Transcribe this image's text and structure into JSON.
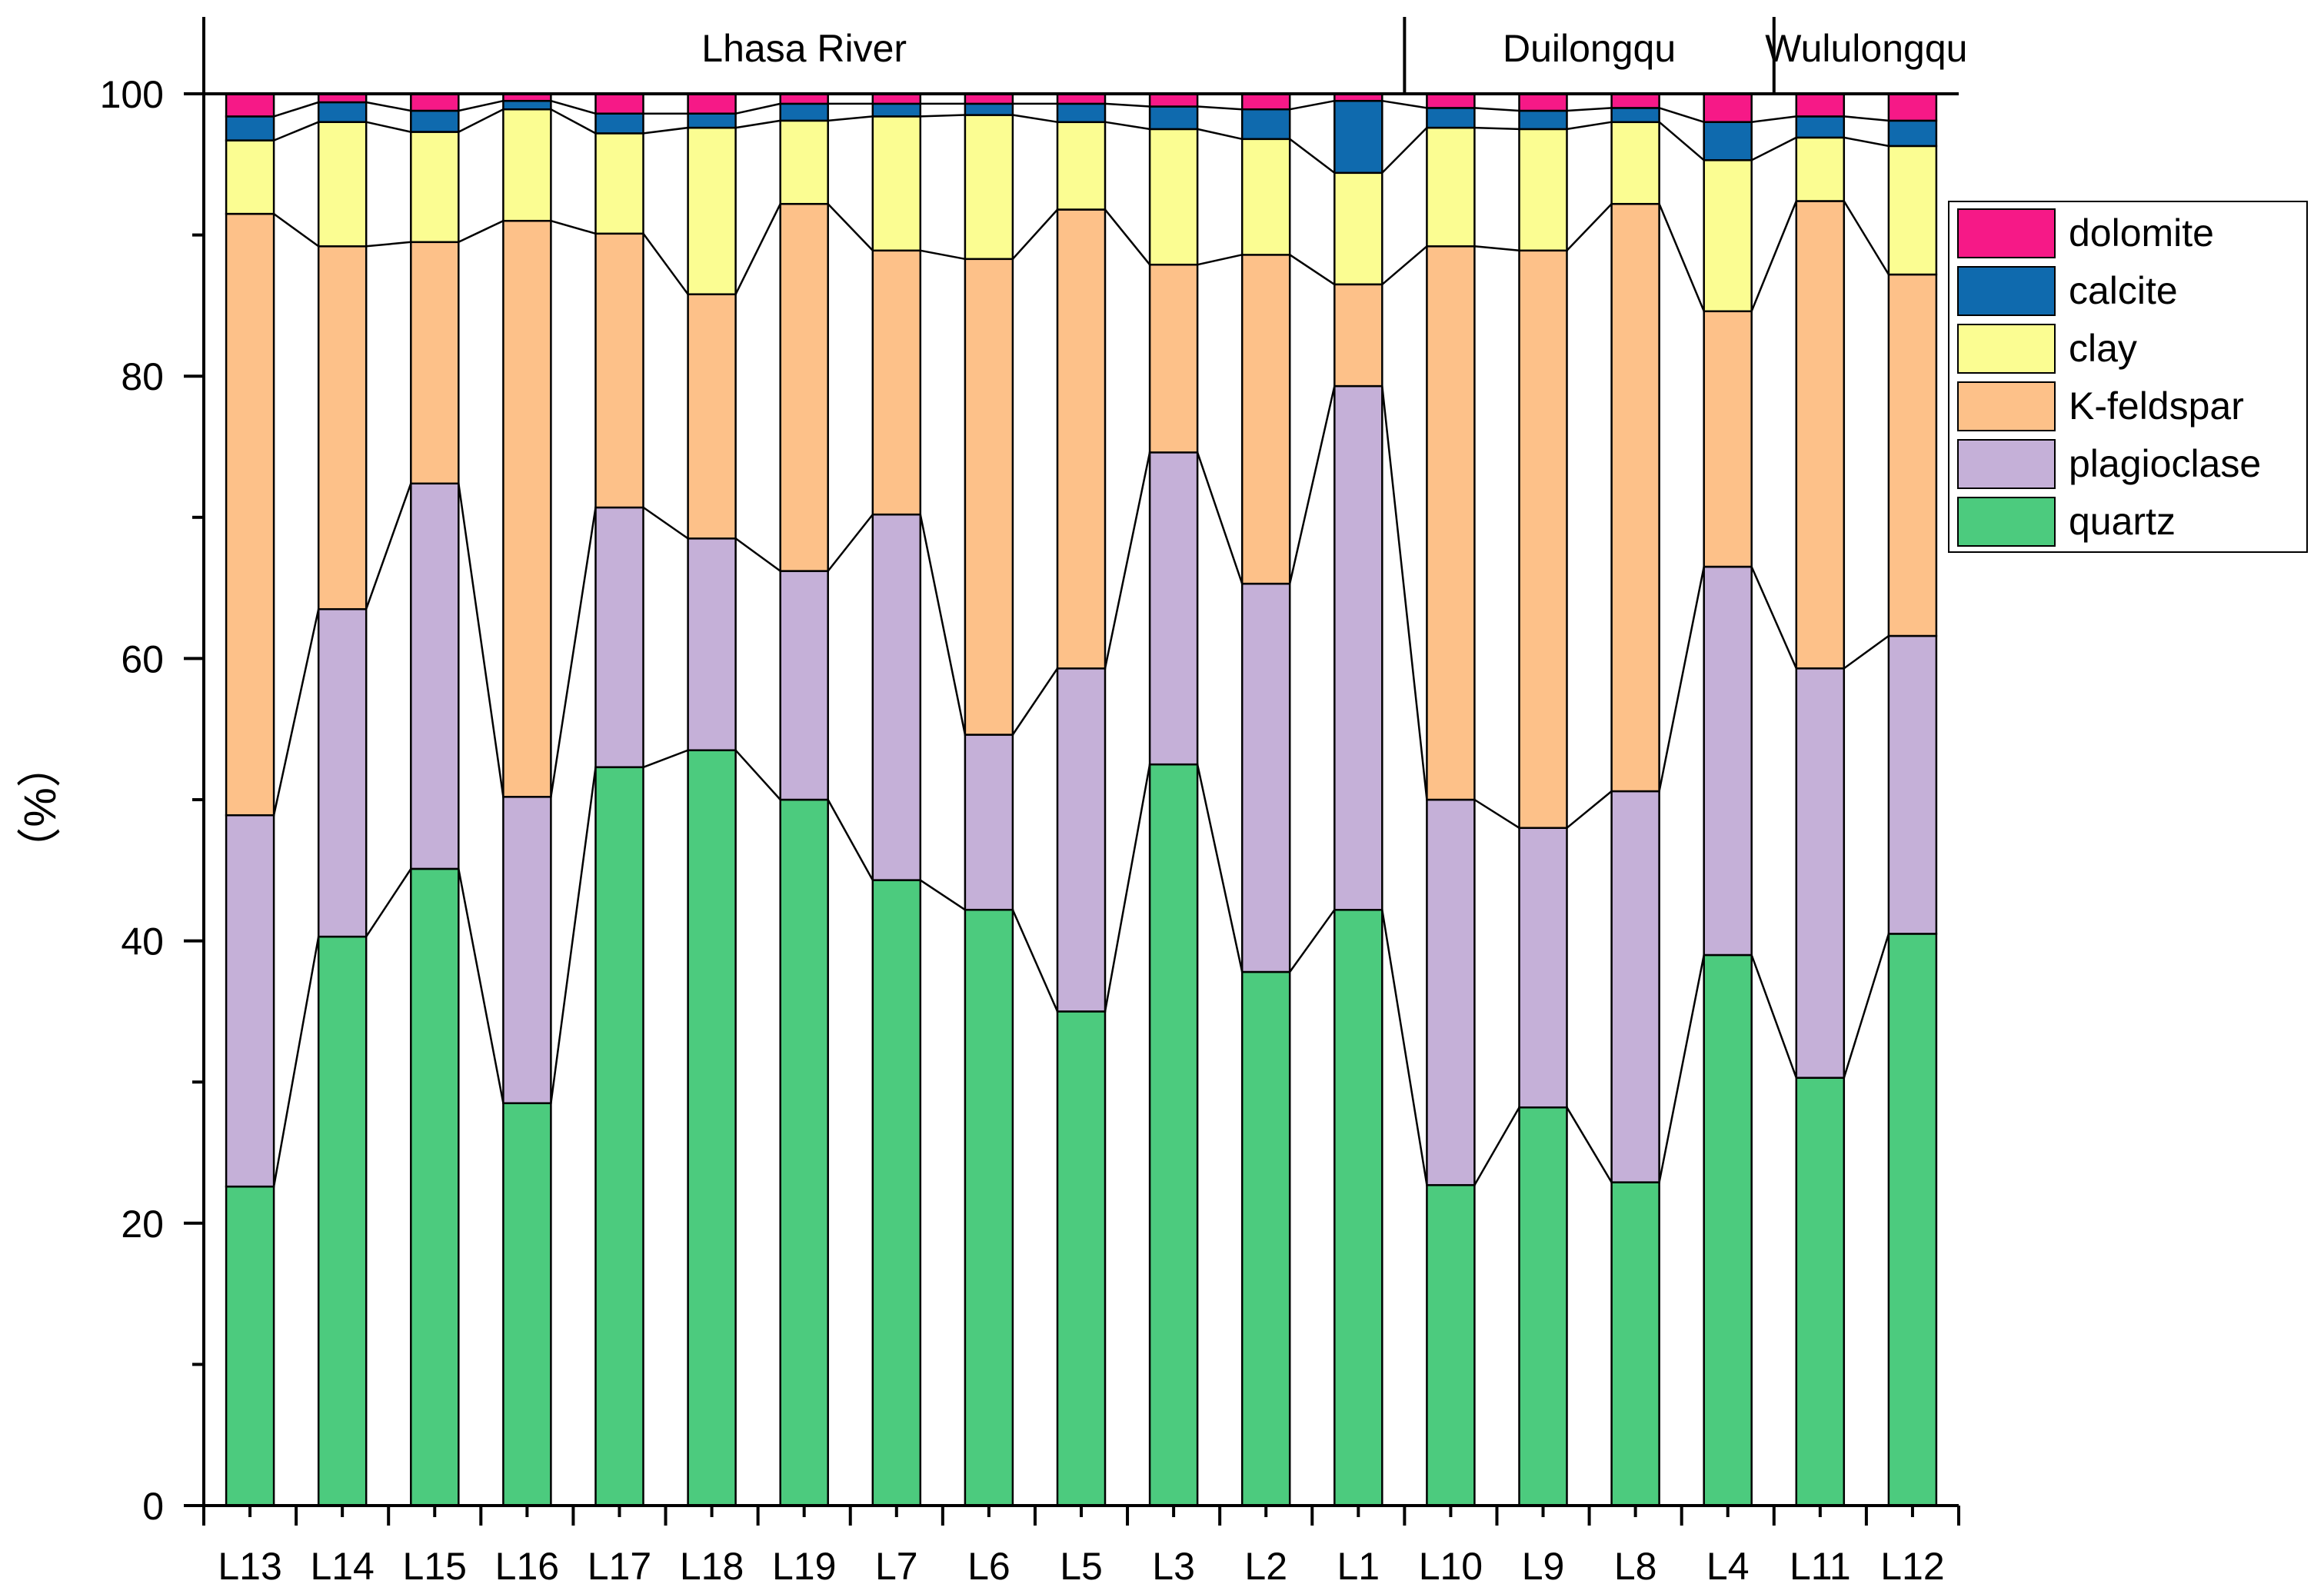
{
  "chart_data": {
    "type": "bar",
    "stacked": true,
    "title": "",
    "xlabel": "",
    "ylabel": "（%）",
    "ylim": [
      0,
      100
    ],
    "yticks": [
      "0",
      "20",
      "40",
      "60",
      "80",
      "100"
    ],
    "categories": [
      "L13",
      "L14",
      "L15",
      "L16",
      "L17",
      "L18",
      "L19",
      "L7",
      "L6",
      "L5",
      "L3",
      "L2",
      "L1",
      "L10",
      "L9",
      "L8",
      "L4",
      "L11",
      "L12"
    ],
    "groups": [
      {
        "name": "Lhasa River",
        "start": 0,
        "end": 12
      },
      {
        "name": "Duilongqu",
        "start": 13,
        "end": 16
      },
      {
        "name": "Wululongqu",
        "start": 17,
        "end": 18
      }
    ],
    "series": [
      {
        "name": "quartz",
        "color": "#4ccb7e",
        "values": [
          22.6,
          40.3,
          45.1,
          28.5,
          52.3,
          53.5,
          50.0,
          44.3,
          42.2,
          35.0,
          52.5,
          37.8,
          42.2,
          22.7,
          28.2,
          22.9,
          39.0,
          30.3,
          40.5
        ]
      },
      {
        "name": "plagioclase",
        "color": "#c5b0d8",
        "values": [
          26.3,
          23.2,
          27.3,
          21.7,
          18.4,
          15.0,
          16.2,
          25.9,
          12.4,
          24.3,
          22.1,
          27.5,
          37.1,
          27.3,
          19.8,
          27.7,
          27.5,
          29.0,
          21.1
        ]
      },
      {
        "name": "K-feldspar",
        "color": "#fdc189",
        "values": [
          42.6,
          25.7,
          17.1,
          40.8,
          19.4,
          17.3,
          26.0,
          18.7,
          33.7,
          32.5,
          13.3,
          23.3,
          7.2,
          39.2,
          40.9,
          41.6,
          18.1,
          33.1,
          25.6
        ]
      },
      {
        "name": "clay",
        "color": "#fbfd92",
        "values": [
          5.2,
          8.8,
          7.8,
          7.9,
          7.1,
          11.8,
          5.9,
          9.5,
          10.2,
          6.2,
          9.6,
          8.2,
          7.9,
          8.4,
          8.6,
          5.8,
          10.7,
          4.5,
          9.1
        ]
      },
      {
        "name": "calcite",
        "color": "#0f6aae",
        "values": [
          1.7,
          1.4,
          1.5,
          0.6,
          1.4,
          1.0,
          1.2,
          0.9,
          0.8,
          1.3,
          1.6,
          2.1,
          5.1,
          1.4,
          1.3,
          1.0,
          2.7,
          1.5,
          1.8
        ]
      },
      {
        "name": "dolomite",
        "color": "#f61987",
        "values": [
          1.6,
          0.6,
          1.2,
          0.5,
          1.4,
          1.4,
          0.7,
          0.7,
          0.7,
          0.7,
          0.9,
          1.1,
          0.5,
          1.0,
          1.2,
          1.0,
          2.0,
          1.6,
          1.9
        ]
      }
    ],
    "legend": {
      "position": "top-right",
      "order": [
        "dolomite",
        "calcite",
        "clay",
        "K-feldspar",
        "plagioclase",
        "quartz"
      ]
    }
  }
}
